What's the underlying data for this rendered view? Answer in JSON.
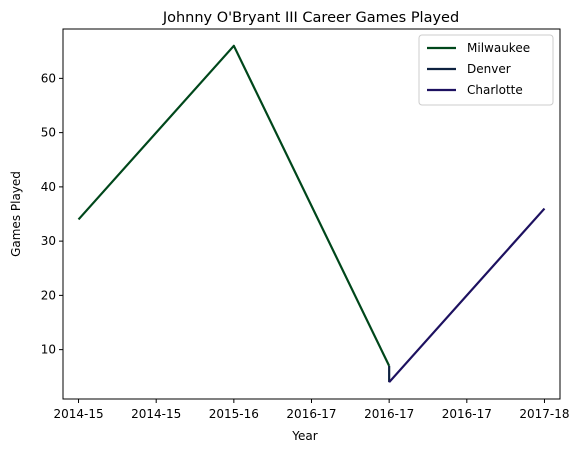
{
  "chart_data": {
    "type": "line",
    "title": "Johnny O'Bryant III Career Games Played",
    "xlabel": "Year",
    "ylabel": "Games Played",
    "x_tick_labels": [
      "2014-15",
      "2014-15",
      "2015-16",
      "2016-17",
      "2016-17",
      "2016-17",
      "2017-18"
    ],
    "x_range": [
      -0.2,
      6.2
    ],
    "ylim": [
      0.9,
      69.1
    ],
    "y_ticks": [
      10,
      20,
      30,
      40,
      50,
      60
    ],
    "grid": false,
    "legend_position": "top-right",
    "series": [
      {
        "name": "Milwaukee",
        "color": "#00471b",
        "points": [
          [
            0,
            34
          ],
          [
            2,
            66
          ],
          [
            4,
            7
          ]
        ]
      },
      {
        "name": "Denver",
        "color": "#0e2240",
        "points": [
          [
            4,
            7
          ],
          [
            4,
            4
          ]
        ]
      },
      {
        "name": "Charlotte",
        "color": "#1d1160",
        "points": [
          [
            4,
            4
          ],
          [
            6,
            36
          ]
        ]
      }
    ]
  }
}
